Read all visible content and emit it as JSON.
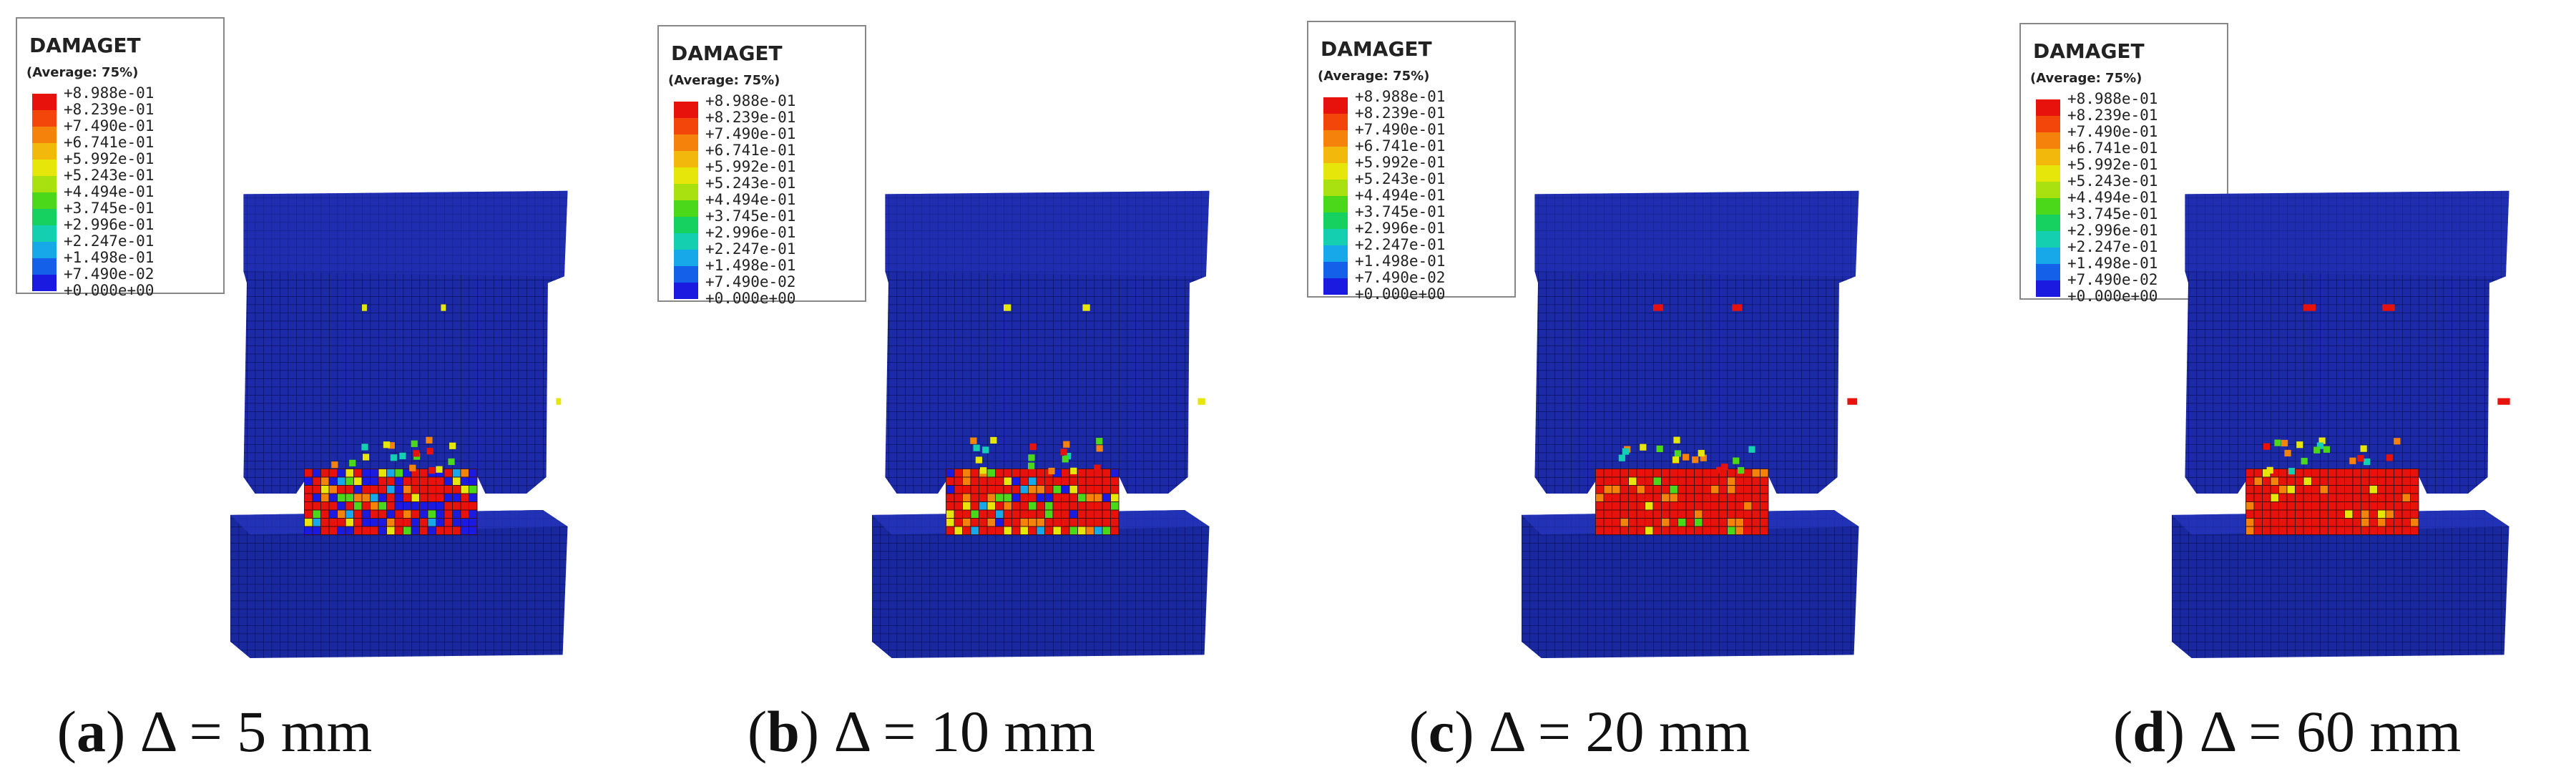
{
  "legend": {
    "title": "DAMAGET",
    "subtitle": "(Average: 75%)",
    "levels": [
      "+8.988e-01",
      "+8.239e-01",
      "+7.490e-01",
      "+6.741e-01",
      "+5.992e-01",
      "+5.243e-01",
      "+4.494e-01",
      "+3.745e-01",
      "+2.996e-01",
      "+2.247e-01",
      "+1.498e-01",
      "+7.490e-02",
      "+0.000e+00"
    ],
    "colors": [
      "#e8120c",
      "#f2460a",
      "#f5820a",
      "#f2b80c",
      "#e6e60a",
      "#a8e010",
      "#4cd81a",
      "#16d060",
      "#14d0b0",
      "#16a8e8",
      "#1460e8",
      "#1a1ae0"
    ]
  },
  "panels": [
    {
      "caption": [
        "(",
        "a",
        ") Δ = 5 mm"
      ]
    },
    {
      "caption": [
        "(",
        "b",
        ") Δ = 10 mm"
      ]
    },
    {
      "caption": [
        "(",
        "c",
        ") Δ = 20 mm"
      ]
    },
    {
      "caption": [
        "(",
        "d",
        ") Δ = 60 mm"
      ]
    }
  ]
}
